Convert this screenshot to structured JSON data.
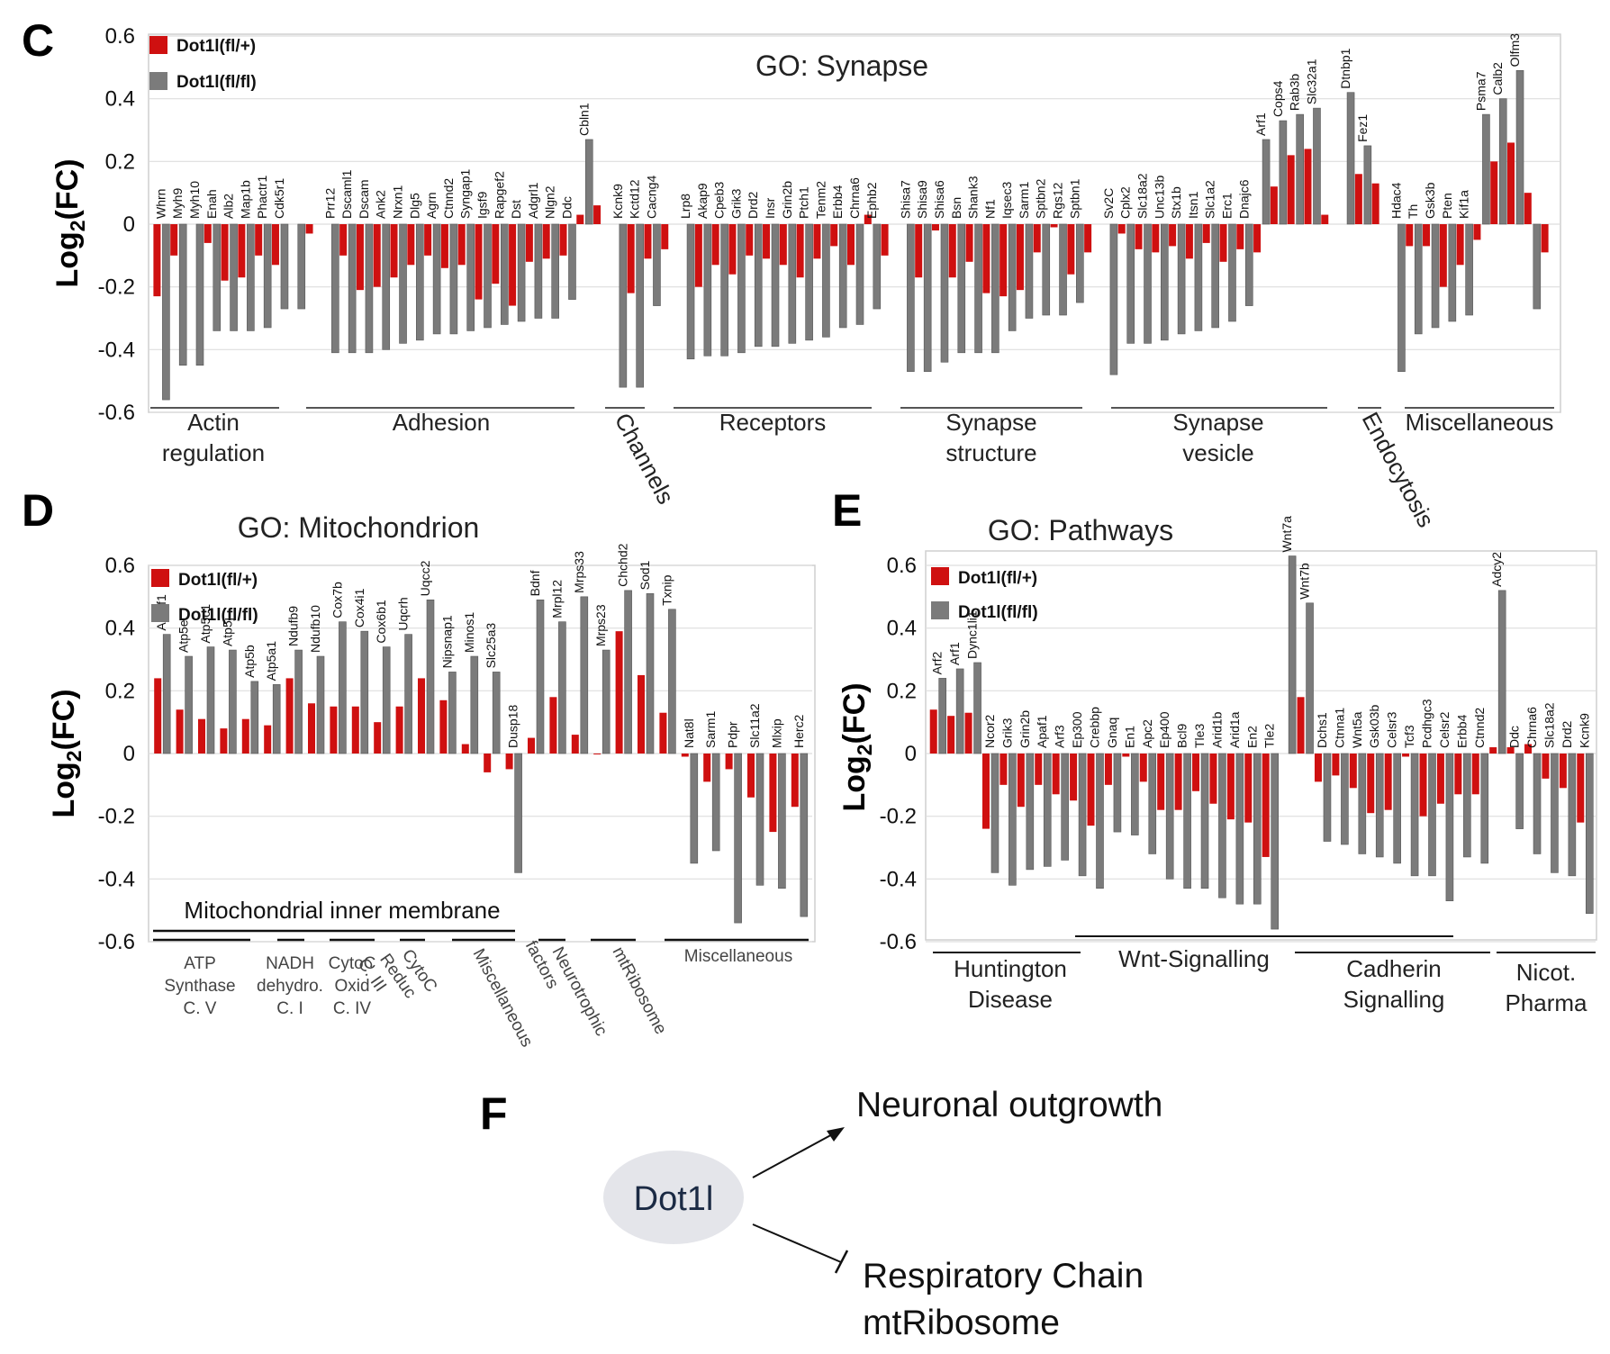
{
  "colors": {
    "het": "#cf1010",
    "ko": "#7b7b7b",
    "grid": "#dedede"
  },
  "chart_data": [
    {
      "panel": "C",
      "type": "bar",
      "title": "GO: Synapse",
      "ylabel": "Log",
      "ylabel_sub": "2",
      "ylabel_tail": "(FC)",
      "ylim": [
        -0.6,
        0.6
      ],
      "yticks": [
        "0.6",
        "0.4",
        "0.2",
        "0",
        "-0.2",
        "-0.4",
        "-0.6"
      ],
      "legend": [
        "Dot1l(fl/+)",
        "Dot1l(fl/fl)"
      ],
      "series_names": [
        "Dot1l(fl/+)",
        "Dot1l(fl/fl)"
      ],
      "genes": [
        {
          "name": "Whrn",
          "het": -0.23,
          "ko": -0.56
        },
        {
          "name": "Myh9",
          "het": -0.1,
          "ko": -0.45
        },
        {
          "name": "Myh10",
          "het": null,
          "ko": -0.45
        },
        {
          "name": "Enah",
          "het": -0.06,
          "ko": -0.34
        },
        {
          "name": "Alb2",
          "het": -0.18,
          "ko": -0.34
        },
        {
          "name": "Map1b",
          "het": -0.17,
          "ko": -0.34
        },
        {
          "name": "Phactr1",
          "het": -0.1,
          "ko": -0.33
        },
        {
          "name": "Cdk5r1",
          "het": -0.13,
          "ko": -0.27
        },
        {
          "name": "",
          "het": null,
          "ko": -0.27
        },
        {
          "name": "",
          "het": -0.03,
          "ko": null
        },
        {
          "name": "Prr12",
          "het": null,
          "ko": -0.41
        },
        {
          "name": "Dscaml1",
          "het": -0.1,
          "ko": -0.41
        },
        {
          "name": "Dscam",
          "het": -0.21,
          "ko": -0.41
        },
        {
          "name": "Ank2",
          "het": -0.2,
          "ko": -0.4
        },
        {
          "name": "Nrxn1",
          "het": -0.17,
          "ko": -0.38
        },
        {
          "name": "Dlg5",
          "het": -0.13,
          "ko": -0.37
        },
        {
          "name": "Agrn",
          "het": -0.1,
          "ko": -0.35
        },
        {
          "name": "Ctnnd2",
          "het": -0.14,
          "ko": -0.35
        },
        {
          "name": "Syngap1",
          "het": -0.13,
          "ko": -0.34
        },
        {
          "name": "Igsf9",
          "het": -0.24,
          "ko": -0.33
        },
        {
          "name": "Rapgef2",
          "het": -0.19,
          "ko": -0.32
        },
        {
          "name": "Dst",
          "het": -0.26,
          "ko": -0.31
        },
        {
          "name": "Adgrl1",
          "het": -0.12,
          "ko": -0.3
        },
        {
          "name": "Nlgn2",
          "het": -0.11,
          "ko": -0.3
        },
        {
          "name": "Ddc",
          "het": -0.1,
          "ko": -0.24
        },
        {
          "name": "Cbln1",
          "het": 0.03,
          "ko": 0.27
        },
        {
          "name": "",
          "het": 0.06,
          "ko": null
        },
        {
          "name": "Kcnk9",
          "het": null,
          "ko": -0.52
        },
        {
          "name": "Kctd12",
          "het": -0.22,
          "ko": -0.52
        },
        {
          "name": "Cacng4",
          "het": -0.11,
          "ko": -0.26
        },
        {
          "name": "",
          "het": -0.08,
          "ko": null
        },
        {
          "name": "Lrp8",
          "het": null,
          "ko": -0.43
        },
        {
          "name": "Akap9",
          "het": -0.2,
          "ko": -0.42
        },
        {
          "name": "Cpeb3",
          "het": -0.13,
          "ko": -0.42
        },
        {
          "name": "Grik3",
          "het": -0.16,
          "ko": -0.41
        },
        {
          "name": "Drd2",
          "het": -0.1,
          "ko": -0.39
        },
        {
          "name": "Insr",
          "het": -0.11,
          "ko": -0.39
        },
        {
          "name": "Grin2b",
          "het": -0.13,
          "ko": -0.38
        },
        {
          "name": "Ptch1",
          "het": -0.17,
          "ko": -0.37
        },
        {
          "name": "Tenm2",
          "het": -0.11,
          "ko": -0.36
        },
        {
          "name": "Erbb4",
          "het": -0.07,
          "ko": -0.33
        },
        {
          "name": "Chrna6",
          "het": -0.13,
          "ko": -0.32
        },
        {
          "name": "Ephb2",
          "het": 0.03,
          "ko": -0.27
        },
        {
          "name": "",
          "het": -0.1,
          "ko": null
        },
        {
          "name": "Shisa7",
          "het": null,
          "ko": -0.47
        },
        {
          "name": "Shisa9",
          "het": -0.17,
          "ko": -0.47
        },
        {
          "name": "Shisa6",
          "het": -0.02,
          "ko": -0.44
        },
        {
          "name": "Bsn",
          "het": -0.17,
          "ko": -0.41
        },
        {
          "name": "Shank3",
          "het": -0.12,
          "ko": -0.41
        },
        {
          "name": "Nf1",
          "het": -0.22,
          "ko": -0.41
        },
        {
          "name": "Iqsec3",
          "het": -0.23,
          "ko": -0.34
        },
        {
          "name": "Sarm1",
          "het": -0.21,
          "ko": -0.3
        },
        {
          "name": "Sptbn2",
          "het": -0.09,
          "ko": -0.29
        },
        {
          "name": "Rgs12",
          "het": -0.01,
          "ko": -0.29
        },
        {
          "name": "Sptbn1",
          "het": -0.16,
          "ko": -0.25
        },
        {
          "name": "",
          "het": -0.09,
          "ko": null
        },
        {
          "name": "Sv2C",
          "het": null,
          "ko": -0.48
        },
        {
          "name": "Cplx2",
          "het": -0.03,
          "ko": -0.38
        },
        {
          "name": "Slc18a2",
          "het": -0.08,
          "ko": -0.38
        },
        {
          "name": "Unc13b",
          "het": -0.09,
          "ko": -0.37
        },
        {
          "name": "Stx1b",
          "het": -0.07,
          "ko": -0.35
        },
        {
          "name": "Itsn1",
          "het": -0.11,
          "ko": -0.34
        },
        {
          "name": "Slc1a2",
          "het": -0.06,
          "ko": -0.33
        },
        {
          "name": "Erc1",
          "het": -0.12,
          "ko": -0.31
        },
        {
          "name": "Dnajc6",
          "het": -0.08,
          "ko": -0.26
        },
        {
          "name": "Arf1",
          "het": -0.09,
          "ko": 0.27
        },
        {
          "name": "Cops4",
          "het": 0.12,
          "ko": 0.33
        },
        {
          "name": "Rab3b",
          "het": 0.22,
          "ko": 0.35
        },
        {
          "name": "Slc32a1",
          "het": 0.24,
          "ko": 0.37
        },
        {
          "name": "",
          "het": 0.03,
          "ko": null
        },
        {
          "name": "Dtnbp1",
          "het": null,
          "ko": 0.42
        },
        {
          "name": "Fez1",
          "het": 0.16,
          "ko": 0.25
        },
        {
          "name": "",
          "het": 0.13,
          "ko": null
        },
        {
          "name": "Hdac4",
          "het": null,
          "ko": -0.47
        },
        {
          "name": "Th",
          "het": -0.07,
          "ko": -0.35
        },
        {
          "name": "Gsk3b",
          "het": -0.07,
          "ko": -0.33
        },
        {
          "name": "Pten",
          "het": -0.2,
          "ko": -0.31
        },
        {
          "name": "Kif1a",
          "het": -0.13,
          "ko": -0.29
        },
        {
          "name": "Psma7",
          "het": -0.05,
          "ko": 0.35
        },
        {
          "name": "Calb2",
          "het": 0.2,
          "ko": 0.4
        },
        {
          "name": "Olfm3",
          "het": 0.26,
          "ko": 0.49
        },
        {
          "name": "",
          "het": 0.1,
          "ko": -0.27
        },
        {
          "name": "",
          "het": -0.09,
          "ko": null
        }
      ],
      "groups": [
        {
          "lines": [
            "Actin",
            "regulation"
          ]
        },
        {
          "lines": [
            "Adhesion"
          ]
        },
        {
          "lines": [
            "Channels"
          ]
        },
        {
          "lines": [
            "Receptors"
          ]
        },
        {
          "lines": [
            "Synapse",
            "structure"
          ]
        },
        {
          "lines": [
            "Synapse",
            "vesicle"
          ]
        },
        {
          "lines": [
            "Endocytosis"
          ]
        },
        {
          "lines": [
            "Miscellaneous"
          ]
        }
      ]
    },
    {
      "panel": "D",
      "type": "bar",
      "title": "GO: Mitochondrion",
      "ylabel": "Log",
      "ylabel_sub": "2",
      "ylabel_tail": "(FC)",
      "ylim": [
        -0.6,
        0.6
      ],
      "yticks": [
        "0.6",
        "0.4",
        "0.2",
        "0",
        "-0.2",
        "-0.4",
        "-0.6"
      ],
      "legend": [
        "Dot1l(fl/+)",
        "Dot1l(fl/fl)"
      ],
      "series_names": [
        "Dot1l(fl/+)",
        "Dot1l(fl/fl)"
      ],
      "genes": [
        {
          "name": "Atp5f1",
          "het": 0.24,
          "ko": 0.38
        },
        {
          "name": "Atp5e",
          "het": 0.14,
          "ko": 0.31
        },
        {
          "name": "Atp5c1",
          "het": 0.11,
          "ko": 0.34
        },
        {
          "name": "Atp5j",
          "het": 0.08,
          "ko": 0.33
        },
        {
          "name": "Atp5b",
          "het": 0.11,
          "ko": 0.23
        },
        {
          "name": "Atp5a1",
          "het": 0.09,
          "ko": 0.22
        },
        {
          "name": "Ndufb9",
          "het": 0.24,
          "ko": 0.33
        },
        {
          "name": "Ndufb10",
          "het": 0.16,
          "ko": 0.31
        },
        {
          "name": "Cox7b",
          "het": 0.15,
          "ko": 0.42
        },
        {
          "name": "Cox4i1",
          "het": 0.15,
          "ko": 0.39
        },
        {
          "name": "Cox6b1",
          "het": 0.1,
          "ko": 0.34
        },
        {
          "name": "Uqcrh",
          "het": 0.15,
          "ko": 0.38
        },
        {
          "name": "Uqcc2",
          "het": 0.24,
          "ko": 0.49
        },
        {
          "name": "Nipsnap1",
          "het": 0.17,
          "ko": 0.26
        },
        {
          "name": "Minos1",
          "het": 0.03,
          "ko": 0.31
        },
        {
          "name": "Slc25a3",
          "het": -0.06,
          "ko": 0.26
        },
        {
          "name": "Dusp18",
          "het": -0.05,
          "ko": -0.38
        },
        {
          "name": "Bdnf",
          "het": 0.05,
          "ko": 0.49
        },
        {
          "name": "Mrpl12",
          "het": 0.18,
          "ko": 0.42
        },
        {
          "name": "Mrps33",
          "het": 0.06,
          "ko": 0.5
        },
        {
          "name": "Mrps23",
          "het": 0.0,
          "ko": 0.33
        },
        {
          "name": "Chchd2",
          "het": 0.39,
          "ko": 0.52
        },
        {
          "name": "Sod1",
          "het": 0.25,
          "ko": 0.51
        },
        {
          "name": "Txnip",
          "het": 0.13,
          "ko": 0.46
        },
        {
          "name": "Nat8l",
          "het": -0.01,
          "ko": -0.35
        },
        {
          "name": "Sarm1",
          "het": -0.09,
          "ko": -0.31
        },
        {
          "name": "Pdpr",
          "het": -0.05,
          "ko": -0.54
        },
        {
          "name": "Slc11a2",
          "het": -0.14,
          "ko": -0.42
        },
        {
          "name": "Mlxip",
          "het": -0.25,
          "ko": -0.43
        },
        {
          "name": "Herc2",
          "het": -0.17,
          "ko": -0.52
        }
      ],
      "super_group": "Mitochondrial inner membrane",
      "groups": [
        {
          "lines": [
            "ATP",
            "Synthase",
            "C. V"
          ]
        },
        {
          "lines": [
            "NADH",
            "dehydro.",
            "C. I"
          ]
        },
        {
          "lines": [
            "CytoC",
            "Oxid",
            "C. IV"
          ]
        },
        {
          "lines": [
            "CytoC",
            "Reduc",
            "C. III"
          ]
        },
        {
          "lines": [
            "Miscellaneous"
          ]
        },
        {
          "lines": [
            "Neurotrophic",
            "factors"
          ]
        },
        {
          "lines": [
            "mtRibosome"
          ]
        },
        {
          "lines": [
            "Miscellaneous"
          ]
        }
      ]
    },
    {
      "panel": "E",
      "type": "bar",
      "title": "GO: Pathways",
      "ylabel": "Log",
      "ylabel_sub": "2",
      "ylabel_tail": "(FC)",
      "ylim": [
        -0.6,
        0.6
      ],
      "yticks": [
        "0.6",
        "0.4",
        "0.2",
        "0",
        "-0.2",
        "-0.4",
        "-0.6"
      ],
      "legend": [
        "Dot1l(fl/+)",
        "Dot1l(fl/fl)"
      ],
      "series_names": [
        "Dot1l(fl/+)",
        "Dot1l(fl/fl)"
      ],
      "genes": [
        {
          "name": "Arf2",
          "het": 0.14,
          "ko": 0.24
        },
        {
          "name": "Arf1",
          "het": 0.12,
          "ko": 0.27
        },
        {
          "name": "Dync1li1",
          "het": 0.13,
          "ko": 0.29
        },
        {
          "name": "Ncor2",
          "het": -0.24,
          "ko": -0.38
        },
        {
          "name": "Grik3",
          "het": -0.1,
          "ko": -0.42
        },
        {
          "name": "Grin2b",
          "het": -0.17,
          "ko": -0.37
        },
        {
          "name": "Apaf1",
          "het": -0.1,
          "ko": -0.36
        },
        {
          "name": "Arf3",
          "het": -0.13,
          "ko": -0.34
        },
        {
          "name": "Ep300",
          "het": -0.15,
          "ko": -0.39
        },
        {
          "name": "Crebbp",
          "het": -0.23,
          "ko": -0.43
        },
        {
          "name": "Gnaq",
          "het": -0.1,
          "ko": -0.25
        },
        {
          "name": "En1",
          "het": -0.01,
          "ko": -0.26
        },
        {
          "name": "Apc2",
          "het": -0.09,
          "ko": -0.32
        },
        {
          "name": "Ep400",
          "het": -0.18,
          "ko": -0.4
        },
        {
          "name": "Bcl9",
          "het": -0.18,
          "ko": -0.43
        },
        {
          "name": "Tle3",
          "het": -0.12,
          "ko": -0.43
        },
        {
          "name": "Arid1b",
          "het": -0.16,
          "ko": -0.46
        },
        {
          "name": "Arid1a",
          "het": -0.21,
          "ko": -0.48
        },
        {
          "name": "En2",
          "het": -0.22,
          "ko": -0.48
        },
        {
          "name": "Tle2",
          "het": -0.33,
          "ko": -0.56
        },
        {
          "name": "Wnt7a",
          "het": null,
          "ko": 0.63
        },
        {
          "name": "Wnt7b",
          "het": 0.18,
          "ko": 0.48
        },
        {
          "name": "Dchs1",
          "het": -0.09,
          "ko": -0.28
        },
        {
          "name": "Ctnna1",
          "het": -0.07,
          "ko": -0.29
        },
        {
          "name": "Wnt5a",
          "het": -0.11,
          "ko": -0.32
        },
        {
          "name": "Gsk03b",
          "het": -0.19,
          "ko": -0.33
        },
        {
          "name": "Celsr3",
          "het": -0.18,
          "ko": -0.35
        },
        {
          "name": "Tcf3",
          "het": -0.01,
          "ko": -0.39
        },
        {
          "name": "Pcdhgc3",
          "het": -0.2,
          "ko": -0.39
        },
        {
          "name": "Celsr2",
          "het": -0.16,
          "ko": -0.47
        },
        {
          "name": "Erbb4",
          "het": -0.13,
          "ko": -0.33
        },
        {
          "name": "Ctnnd2",
          "het": -0.13,
          "ko": -0.35
        },
        {
          "name": "Adcy2",
          "het": 0.02,
          "ko": 0.52
        },
        {
          "name": "Ddc",
          "het": 0.02,
          "ko": -0.24
        },
        {
          "name": "Chrna6",
          "het": 0.03,
          "ko": -0.32
        },
        {
          "name": "Slc18a2",
          "het": -0.08,
          "ko": -0.38
        },
        {
          "name": "Drd2",
          "het": -0.11,
          "ko": -0.39
        },
        {
          "name": "Kcnk9",
          "het": -0.22,
          "ko": -0.51
        }
      ],
      "groups": [
        {
          "lines": [
            "Huntington",
            "Disease"
          ]
        },
        {
          "lines": [
            "Wnt-Signalling"
          ]
        },
        {
          "lines": [
            "Cadherin",
            "Signalling"
          ]
        },
        {
          "lines": [
            "Nicot.",
            "Pharma"
          ]
        }
      ]
    }
  ],
  "panel_f": {
    "letter": "F",
    "node": "Dot1l",
    "up_target": "Neuronal outgrowth",
    "down_target_line1": "Respiratory Chain",
    "down_target_line2": "mtRibosome"
  }
}
